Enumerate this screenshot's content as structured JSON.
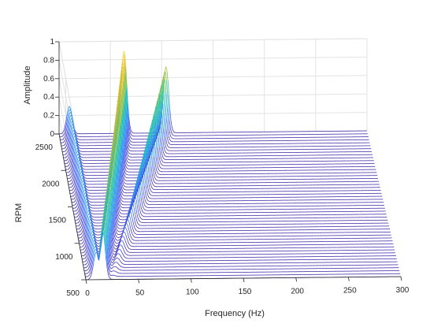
{
  "chart_data": {
    "type": "waterfall-3d",
    "title": "",
    "xlabel": "Frequency (Hz)",
    "ylabel": "RPM",
    "zlabel": "Amplitude",
    "xlim": [
      0,
      300
    ],
    "ylim": [
      500,
      2500
    ],
    "zlim": [
      0,
      1
    ],
    "x_ticks": [
      "0",
      "50",
      "100",
      "150",
      "200",
      "250",
      "300"
    ],
    "y_ticks": [
      "500",
      "1000",
      "1500",
      "2000",
      "2500"
    ],
    "z_ticks": [
      "0",
      "0.2",
      "0.4",
      "0.6",
      "0.8",
      "1"
    ],
    "rpm_count": 50,
    "rpm_range": [
      500,
      2500
    ],
    "grid": true,
    "colormap": [
      "#3e26a8",
      "#4352ec",
      "#2d8df6",
      "#1bb2d2",
      "#28c49b",
      "#8bc44c",
      "#e2b82e",
      "#f9d926",
      "#f9fb14"
    ],
    "series": [
      {
        "freq_hz": [
          10,
          10
        ],
        "amplitude_at_rpm_ends": [
          0.3,
          0.3
        ]
      },
      {
        "freq_hz": [
          15.8,
          63.3
        ],
        "amplitude_at_rpm_ends": [
          0.55,
          0.9
        ]
      },
      {
        "freq_hz": [
          24.3,
          104.2
        ],
        "amplitude_at_rpm_ends": [
          0.0,
          0.72
        ]
      }
    ]
  }
}
